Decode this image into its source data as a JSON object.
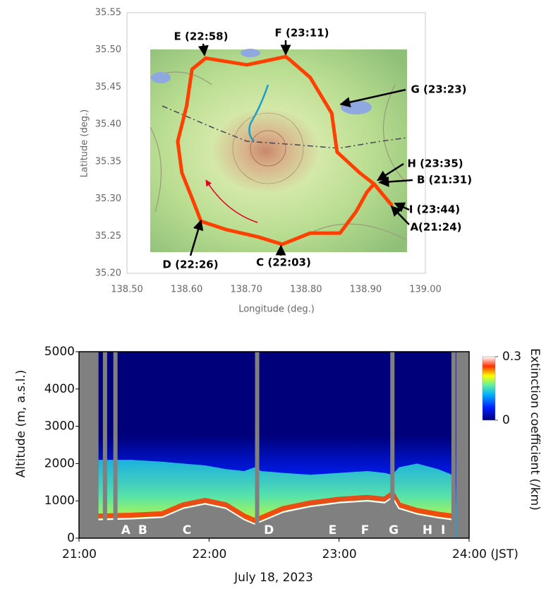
{
  "chart_data": [
    {
      "type": "map",
      "xlabel": "Longitude (deg.)",
      "ylabel": "Latitude (deg.)",
      "xlim": [
        138.5,
        139.0
      ],
      "ylim": [
        35.2,
        35.55
      ],
      "xticks": [
        {
          "value": 138.5,
          "label": "138.50"
        },
        {
          "value": 138.6,
          "label": "138.60"
        },
        {
          "value": 138.7,
          "label": "138.70"
        },
        {
          "value": 138.8,
          "label": "138.80"
        },
        {
          "value": 138.9,
          "label": "138.90"
        },
        {
          "value": 139.0,
          "label": "139.00"
        }
      ],
      "yticks": [
        {
          "value": 35.2,
          "label": "35.20"
        },
        35.25,
        {
          "value": 35.3,
          "label": "35.30"
        },
        35.35,
        {
          "value": 35.4,
          "label": "35.40"
        },
        35.45,
        {
          "value": 35.5,
          "label": "35.50"
        },
        35.55
      ],
      "route": {
        "color": "#ff4000",
        "x": [
          138.943,
          138.914,
          138.89,
          138.852,
          138.843,
          138.807,
          138.774,
          138.766,
          138.701,
          138.632,
          138.609,
          138.6,
          138.585,
          138.592,
          138.609,
          138.624,
          138.665,
          138.719,
          138.76,
          138.807,
          138.857,
          138.884,
          138.902,
          138.914,
          138.943
        ],
        "y": [
          35.292,
          35.32,
          35.335,
          35.363,
          35.415,
          35.463,
          35.486,
          35.491,
          35.48,
          35.489,
          35.474,
          35.425,
          35.377,
          35.335,
          35.301,
          35.27,
          35.259,
          35.249,
          35.239,
          35.254,
          35.254,
          35.283,
          35.309,
          35.32,
          35.292
        ]
      },
      "annotations": [
        {
          "text": "E (22:58)",
          "x": 138.63,
          "y": 35.493
        },
        {
          "text": "F (23:11)",
          "x": 138.766,
          "y": 35.494
        },
        {
          "text": "G (23:23)",
          "x": 138.858,
          "y": 35.427
        },
        {
          "text": "H (23:35)",
          "x": 138.92,
          "y": 35.325
        },
        {
          "text": "B (21:31)",
          "x": 138.923,
          "y": 35.322
        },
        {
          "text": "I (23:44)",
          "x": 138.949,
          "y": 35.294
        },
        {
          "text": "A(21:24)",
          "x": 138.943,
          "y": 35.29
        },
        {
          "text": "D (22:26)",
          "x": 138.624,
          "y": 35.271
        },
        {
          "text": "C (22:03)",
          "x": 138.758,
          "y": 35.237
        }
      ]
    },
    {
      "type": "heatmap",
      "xlabel": "July 18, 2023",
      "ylabel": "Altitude (m, a.s.l.)",
      "xlim": [
        21,
        24
      ],
      "ylim": [
        0,
        5000
      ],
      "xticks": [
        {
          "value": 21,
          "label": "21:00"
        },
        {
          "value": 22,
          "label": "22:00"
        },
        {
          "value": 23,
          "label": "23:00"
        },
        {
          "value": 24,
          "label": "24:00 (JST)"
        }
      ],
      "yticks": [
        0,
        1000,
        2000,
        3000,
        4000,
        5000
      ],
      "data_range": [
        21.15,
        23.9
      ],
      "x": [
        21.15,
        21.4,
        21.64,
        21.8,
        21.97,
        22.13,
        22.27,
        22.35,
        22.4,
        22.57,
        22.78,
        23.0,
        23.22,
        23.35,
        23.41,
        23.46,
        23.6,
        23.76,
        23.87
      ],
      "surface": [
        500,
        520,
        560,
        800,
        920,
        800,
        500,
        380,
        450,
        700,
        850,
        950,
        1000,
        950,
        1100,
        800,
        650,
        550,
        500
      ],
      "layer_top": [
        2100,
        2100,
        2050,
        2000,
        1950,
        1850,
        1800,
        1900,
        1800,
        1750,
        1700,
        1750,
        1800,
        1750,
        1700,
        1900,
        2000,
        1850,
        1700
      ],
      "gaps": [
        21.2,
        21.28,
        22.37,
        23.41,
        23.88
      ],
      "annotations": [
        {
          "text": "A",
          "x": 21.36
        },
        {
          "text": "B",
          "x": 21.49
        },
        {
          "text": "C",
          "x": 21.83
        },
        {
          "text": "D",
          "x": 22.46
        },
        {
          "text": "E",
          "x": 22.95
        },
        {
          "text": "F",
          "x": 23.2
        },
        {
          "text": "G",
          "x": 23.42
        },
        {
          "text": "H",
          "x": 23.68
        },
        {
          "text": "I",
          "x": 23.8
        }
      ],
      "colorbar_label": "Extinction coefficient (/km)",
      "clim": [
        0,
        0.3
      ],
      "cticks": [
        0,
        0.3
      ],
      "colormap": [
        "#00007a",
        "#0020ff",
        "#00b0ff",
        "#60f0a0",
        "#ffff00",
        "#ff3000",
        "#ffffff"
      ]
    }
  ]
}
